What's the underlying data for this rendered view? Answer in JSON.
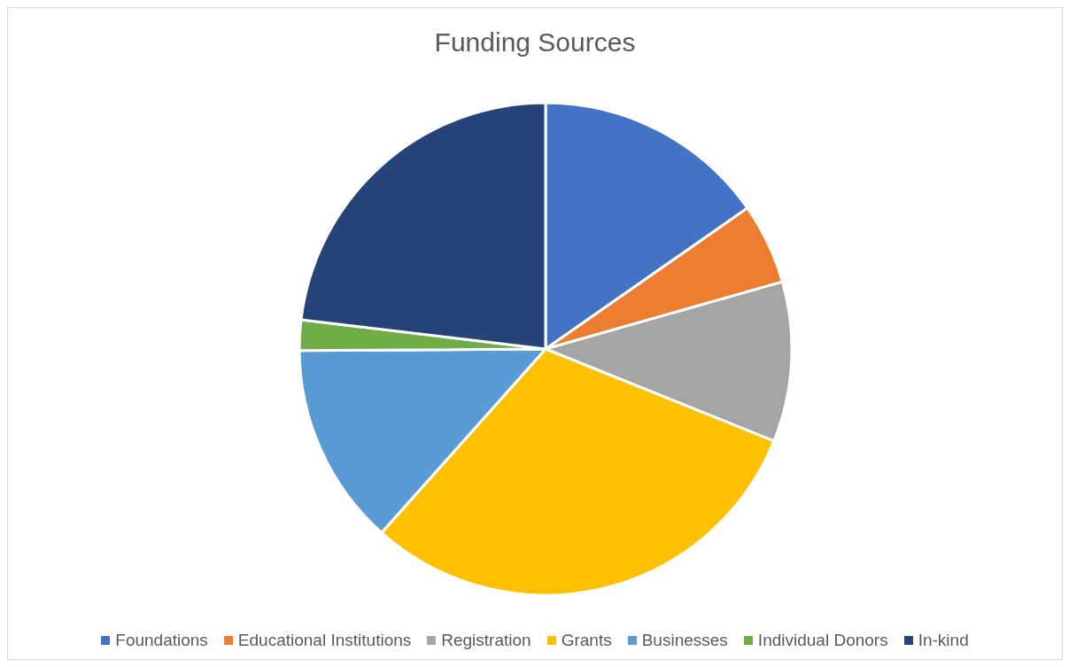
{
  "chart_data": {
    "type": "pie",
    "title": "Funding Sources",
    "categories": [
      "Foundations",
      "Educational Institutions",
      "Registration",
      "Grants",
      "Businesses",
      "Individual Donors",
      "In-kind"
    ],
    "values": [
      15.3,
      5.3,
      10.5,
      30.5,
      13.3,
      2.0,
      23.1
    ],
    "colors": [
      "#4472c4",
      "#ed7d31",
      "#a5a5a5",
      "#ffc000",
      "#5b9bd5",
      "#70ad47",
      "#264478"
    ],
    "legend": "bottom"
  }
}
